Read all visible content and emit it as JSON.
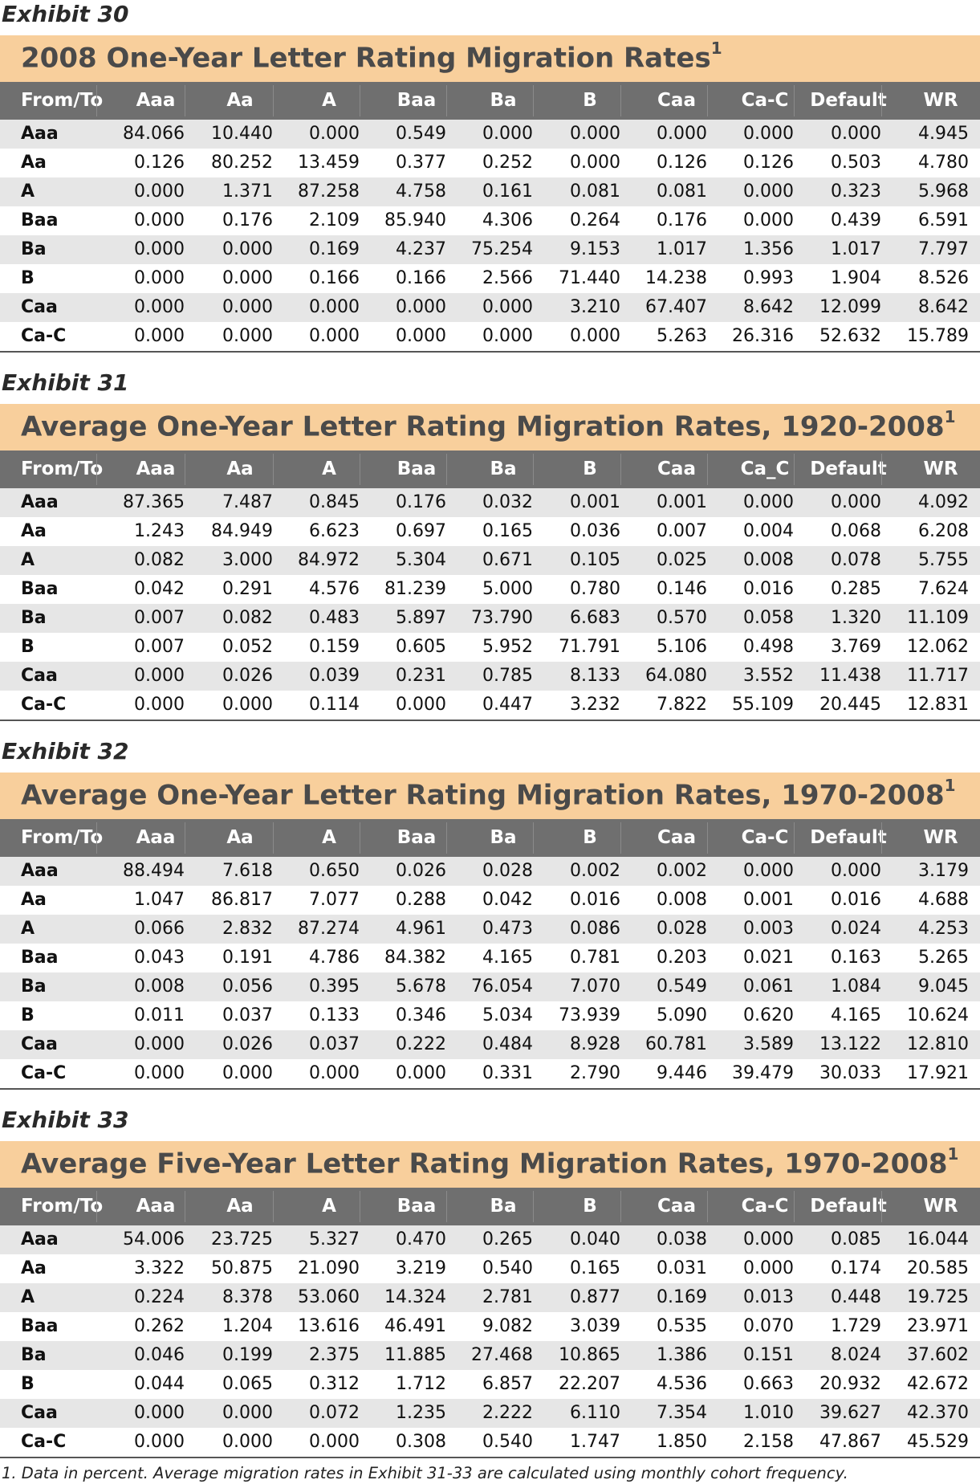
{
  "exhibits": [
    {
      "label": "Exhibit 30",
      "title": "2008 One-Year Letter Rating Migration Rates",
      "title_sup": "1",
      "columns": [
        "From/To",
        "Aaa",
        "Aa",
        "A",
        "Baa",
        "Ba",
        "B",
        "Caa",
        "Ca-C",
        "Default",
        "WR"
      ],
      "rows": [
        [
          "Aaa",
          "84.066",
          "10.440",
          "0.000",
          "0.549",
          "0.000",
          "0.000",
          "0.000",
          "0.000",
          "0.000",
          "4.945"
        ],
        [
          "Aa",
          "0.126",
          "80.252",
          "13.459",
          "0.377",
          "0.252",
          "0.000",
          "0.126",
          "0.126",
          "0.503",
          "4.780"
        ],
        [
          "A",
          "0.000",
          "1.371",
          "87.258",
          "4.758",
          "0.161",
          "0.081",
          "0.081",
          "0.000",
          "0.323",
          "5.968"
        ],
        [
          "Baa",
          "0.000",
          "0.176",
          "2.109",
          "85.940",
          "4.306",
          "0.264",
          "0.176",
          "0.000",
          "0.439",
          "6.591"
        ],
        [
          "Ba",
          "0.000",
          "0.000",
          "0.169",
          "4.237",
          "75.254",
          "9.153",
          "1.017",
          "1.356",
          "1.017",
          "7.797"
        ],
        [
          "B",
          "0.000",
          "0.000",
          "0.166",
          "0.166",
          "2.566",
          "71.440",
          "14.238",
          "0.993",
          "1.904",
          "8.526"
        ],
        [
          "Caa",
          "0.000",
          "0.000",
          "0.000",
          "0.000",
          "0.000",
          "3.210",
          "67.407",
          "8.642",
          "12.099",
          "8.642"
        ],
        [
          "Ca-C",
          "0.000",
          "0.000",
          "0.000",
          "0.000",
          "0.000",
          "0.000",
          "5.263",
          "26.316",
          "52.632",
          "15.789"
        ]
      ]
    },
    {
      "label": "Exhibit 31",
      "title": "Average One-Year Letter Rating Migration Rates, 1920-2008",
      "title_sup": "1",
      "columns": [
        "From/To",
        "Aaa",
        "Aa",
        "A",
        "Baa",
        "Ba",
        "B",
        "Caa",
        "Ca_C",
        "Default",
        "WR"
      ],
      "rows": [
        [
          "Aaa",
          "87.365",
          "7.487",
          "0.845",
          "0.176",
          "0.032",
          "0.001",
          "0.001",
          "0.000",
          "0.000",
          "4.092"
        ],
        [
          "Aa",
          "1.243",
          "84.949",
          "6.623",
          "0.697",
          "0.165",
          "0.036",
          "0.007",
          "0.004",
          "0.068",
          "6.208"
        ],
        [
          "A",
          "0.082",
          "3.000",
          "84.972",
          "5.304",
          "0.671",
          "0.105",
          "0.025",
          "0.008",
          "0.078",
          "5.755"
        ],
        [
          "Baa",
          "0.042",
          "0.291",
          "4.576",
          "81.239",
          "5.000",
          "0.780",
          "0.146",
          "0.016",
          "0.285",
          "7.624"
        ],
        [
          "Ba",
          "0.007",
          "0.082",
          "0.483",
          "5.897",
          "73.790",
          "6.683",
          "0.570",
          "0.058",
          "1.320",
          "11.109"
        ],
        [
          "B",
          "0.007",
          "0.052",
          "0.159",
          "0.605",
          "5.952",
          "71.791",
          "5.106",
          "0.498",
          "3.769",
          "12.062"
        ],
        [
          "Caa",
          "0.000",
          "0.026",
          "0.039",
          "0.231",
          "0.785",
          "8.133",
          "64.080",
          "3.552",
          "11.438",
          "11.717"
        ],
        [
          "Ca-C",
          "0.000",
          "0.000",
          "0.114",
          "0.000",
          "0.447",
          "3.232",
          "7.822",
          "55.109",
          "20.445",
          "12.831"
        ]
      ]
    },
    {
      "label": "Exhibit 32",
      "title": "Average One-Year Letter Rating Migration Rates, 1970-2008",
      "title_sup": "1",
      "columns": [
        "From/To",
        "Aaa",
        "Aa",
        "A",
        "Baa",
        "Ba",
        "B",
        "Caa",
        "Ca-C",
        "Default",
        "WR"
      ],
      "rows": [
        [
          "Aaa",
          "88.494",
          "7.618",
          "0.650",
          "0.026",
          "0.028",
          "0.002",
          "0.002",
          "0.000",
          "0.000",
          "3.179"
        ],
        [
          "Aa",
          "1.047",
          "86.817",
          "7.077",
          "0.288",
          "0.042",
          "0.016",
          "0.008",
          "0.001",
          "0.016",
          "4.688"
        ],
        [
          "A",
          "0.066",
          "2.832",
          "87.274",
          "4.961",
          "0.473",
          "0.086",
          "0.028",
          "0.003",
          "0.024",
          "4.253"
        ],
        [
          "Baa",
          "0.043",
          "0.191",
          "4.786",
          "84.382",
          "4.165",
          "0.781",
          "0.203",
          "0.021",
          "0.163",
          "5.265"
        ],
        [
          "Ba",
          "0.008",
          "0.056",
          "0.395",
          "5.678",
          "76.054",
          "7.070",
          "0.549",
          "0.061",
          "1.084",
          "9.045"
        ],
        [
          "B",
          "0.011",
          "0.037",
          "0.133",
          "0.346",
          "5.034",
          "73.939",
          "5.090",
          "0.620",
          "4.165",
          "10.624"
        ],
        [
          "Caa",
          "0.000",
          "0.026",
          "0.037",
          "0.222",
          "0.484",
          "8.928",
          "60.781",
          "3.589",
          "13.122",
          "12.810"
        ],
        [
          "Ca-C",
          "0.000",
          "0.000",
          "0.000",
          "0.000",
          "0.331",
          "2.790",
          "9.446",
          "39.479",
          "30.033",
          "17.921"
        ]
      ]
    },
    {
      "label": "Exhibit 33",
      "title": "Average Five-Year Letter Rating Migration Rates, 1970-2008",
      "title_sup": "1",
      "columns": [
        "From/To",
        "Aaa",
        "Aa",
        "A",
        "Baa",
        "Ba",
        "B",
        "Caa",
        "Ca-C",
        "Default",
        "WR"
      ],
      "rows": [
        [
          "Aaa",
          "54.006",
          "23.725",
          "5.327",
          "0.470",
          "0.265",
          "0.040",
          "0.038",
          "0.000",
          "0.085",
          "16.044"
        ],
        [
          "Aa",
          "3.322",
          "50.875",
          "21.090",
          "3.219",
          "0.540",
          "0.165",
          "0.031",
          "0.000",
          "0.174",
          "20.585"
        ],
        [
          "A",
          "0.224",
          "8.378",
          "53.060",
          "14.324",
          "2.781",
          "0.877",
          "0.169",
          "0.013",
          "0.448",
          "19.725"
        ],
        [
          "Baa",
          "0.262",
          "1.204",
          "13.616",
          "46.491",
          "9.082",
          "3.039",
          "0.535",
          "0.070",
          "1.729",
          "23.971"
        ],
        [
          "Ba",
          "0.046",
          "0.199",
          "2.375",
          "11.885",
          "27.468",
          "10.865",
          "1.386",
          "0.151",
          "8.024",
          "37.602"
        ],
        [
          "B",
          "0.044",
          "0.065",
          "0.312",
          "1.712",
          "6.857",
          "22.207",
          "4.536",
          "0.663",
          "20.932",
          "42.672"
        ],
        [
          "Caa",
          "0.000",
          "0.000",
          "0.072",
          "1.235",
          "2.222",
          "6.110",
          "7.354",
          "1.010",
          "39.627",
          "42.370"
        ],
        [
          "Ca-C",
          "0.000",
          "0.000",
          "0.000",
          "0.308",
          "0.540",
          "1.747",
          "1.850",
          "2.158",
          "47.867",
          "45.529"
        ]
      ]
    }
  ],
  "footnote": "1. Data in percent. Average migration rates in Exhibit 31-33 are calculated using monthly cohort frequency."
}
